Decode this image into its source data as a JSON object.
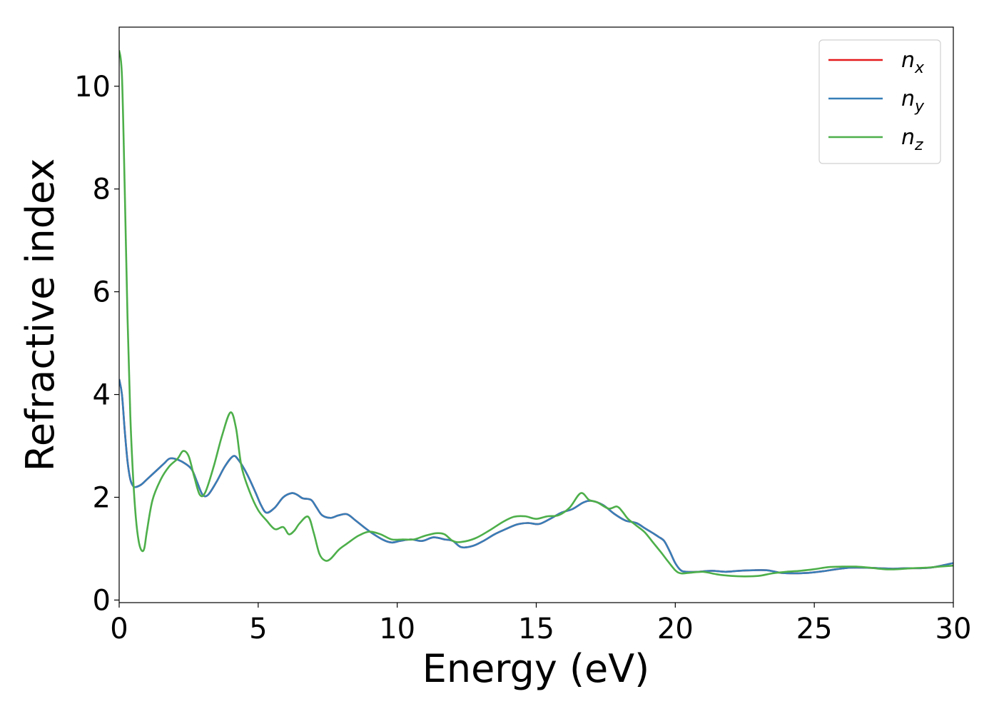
{
  "chart_data": {
    "type": "line",
    "xlabel": "Energy (eV)",
    "ylabel": "Refractive index",
    "xlim": [
      0,
      30
    ],
    "ylim": [
      -0.05,
      11.15
    ],
    "xticks": [
      0,
      5,
      10,
      15,
      20,
      25,
      30
    ],
    "yticks": [
      0,
      2,
      4,
      6,
      8,
      10
    ],
    "grid": false,
    "legend_position": "top-right",
    "series": [
      {
        "name": "n",
        "sub": "x",
        "color": "#e41a1c",
        "x": [
          0,
          0.1,
          0.2,
          0.3,
          0.4,
          0.5,
          0.6,
          0.8,
          1.0,
          1.3,
          1.6,
          1.8,
          2.0,
          2.3,
          2.6,
          2.8,
          3.0,
          3.2,
          3.5,
          3.8,
          4.1,
          4.3,
          4.6,
          4.9,
          5.1,
          5.3,
          5.6,
          5.9,
          6.2,
          6.4,
          6.6,
          6.9,
          7.1,
          7.3,
          7.6,
          7.9,
          8.2,
          8.5,
          8.8,
          9.1,
          9.5,
          9.8,
          10.1,
          10.5,
          10.9,
          11.3,
          11.7,
          12.0,
          12.3,
          12.7,
          13.1,
          13.5,
          13.9,
          14.3,
          14.7,
          15.1,
          15.5,
          15.9,
          16.3,
          16.7,
          17.0,
          17.4,
          17.8,
          18.2,
          18.6,
          18.9,
          19.2,
          19.4,
          19.6,
          19.8,
          20.0,
          20.2,
          20.4,
          20.8,
          21.3,
          21.8,
          22.3,
          22.8,
          23.3,
          23.8,
          24.3,
          24.8,
          25.3,
          25.8,
          26.3,
          26.8,
          27.3,
          27.8,
          28.3,
          28.8,
          29.3,
          30.0
        ],
        "y": [
          4.3,
          4.0,
          3.3,
          2.7,
          2.35,
          2.22,
          2.2,
          2.25,
          2.35,
          2.5,
          2.65,
          2.75,
          2.75,
          2.68,
          2.55,
          2.3,
          2.05,
          2.05,
          2.3,
          2.6,
          2.8,
          2.72,
          2.45,
          2.1,
          1.85,
          1.7,
          1.8,
          2.0,
          2.08,
          2.05,
          1.98,
          1.95,
          1.8,
          1.65,
          1.6,
          1.65,
          1.67,
          1.55,
          1.42,
          1.3,
          1.17,
          1.12,
          1.15,
          1.18,
          1.15,
          1.22,
          1.18,
          1.15,
          1.03,
          1.05,
          1.15,
          1.28,
          1.38,
          1.47,
          1.5,
          1.48,
          1.58,
          1.7,
          1.77,
          1.9,
          1.93,
          1.85,
          1.68,
          1.55,
          1.5,
          1.4,
          1.3,
          1.23,
          1.15,
          0.95,
          0.72,
          0.58,
          0.55,
          0.55,
          0.57,
          0.55,
          0.57,
          0.58,
          0.58,
          0.53,
          0.52,
          0.53,
          0.56,
          0.6,
          0.63,
          0.63,
          0.62,
          0.61,
          0.62,
          0.62,
          0.64,
          0.72
        ]
      },
      {
        "name": "n",
        "sub": "y",
        "color": "#377eb8",
        "x": [
          0,
          0.1,
          0.2,
          0.3,
          0.4,
          0.5,
          0.6,
          0.8,
          1.0,
          1.3,
          1.6,
          1.8,
          2.0,
          2.3,
          2.6,
          2.8,
          3.0,
          3.2,
          3.5,
          3.8,
          4.1,
          4.3,
          4.6,
          4.9,
          5.1,
          5.3,
          5.6,
          5.9,
          6.2,
          6.4,
          6.6,
          6.9,
          7.1,
          7.3,
          7.6,
          7.9,
          8.2,
          8.5,
          8.8,
          9.1,
          9.5,
          9.8,
          10.1,
          10.5,
          10.9,
          11.3,
          11.7,
          12.0,
          12.3,
          12.7,
          13.1,
          13.5,
          13.9,
          14.3,
          14.7,
          15.1,
          15.5,
          15.9,
          16.3,
          16.7,
          17.0,
          17.4,
          17.8,
          18.2,
          18.6,
          18.9,
          19.2,
          19.4,
          19.6,
          19.8,
          20.0,
          20.2,
          20.4,
          20.8,
          21.3,
          21.8,
          22.3,
          22.8,
          23.3,
          23.8,
          24.3,
          24.8,
          25.3,
          25.8,
          26.3,
          26.8,
          27.3,
          27.8,
          28.3,
          28.8,
          29.3,
          30.0
        ],
        "y": [
          4.3,
          4.0,
          3.3,
          2.7,
          2.35,
          2.22,
          2.2,
          2.25,
          2.35,
          2.5,
          2.65,
          2.75,
          2.75,
          2.68,
          2.55,
          2.3,
          2.05,
          2.05,
          2.3,
          2.6,
          2.8,
          2.72,
          2.45,
          2.1,
          1.85,
          1.7,
          1.8,
          2.0,
          2.08,
          2.05,
          1.98,
          1.95,
          1.8,
          1.65,
          1.6,
          1.65,
          1.67,
          1.55,
          1.42,
          1.3,
          1.17,
          1.12,
          1.15,
          1.18,
          1.15,
          1.22,
          1.18,
          1.15,
          1.03,
          1.05,
          1.15,
          1.28,
          1.38,
          1.47,
          1.5,
          1.48,
          1.58,
          1.7,
          1.77,
          1.9,
          1.93,
          1.85,
          1.68,
          1.55,
          1.5,
          1.4,
          1.3,
          1.23,
          1.15,
          0.95,
          0.72,
          0.58,
          0.55,
          0.55,
          0.57,
          0.55,
          0.57,
          0.58,
          0.58,
          0.53,
          0.52,
          0.53,
          0.56,
          0.6,
          0.63,
          0.63,
          0.62,
          0.61,
          0.62,
          0.62,
          0.64,
          0.72
        ]
      },
      {
        "name": "n",
        "sub": "z",
        "color": "#4daf4a",
        "x": [
          0,
          0.1,
          0.2,
          0.3,
          0.4,
          0.5,
          0.6,
          0.7,
          0.8,
          0.9,
          1.0,
          1.2,
          1.5,
          1.8,
          2.1,
          2.3,
          2.5,
          2.7,
          2.9,
          3.1,
          3.4,
          3.7,
          4.0,
          4.2,
          4.4,
          4.7,
          5.0,
          5.3,
          5.6,
          5.9,
          6.1,
          6.3,
          6.5,
          6.8,
          7.0,
          7.2,
          7.4,
          7.6,
          7.9,
          8.2,
          8.6,
          9.0,
          9.4,
          9.8,
          10.2,
          10.6,
          11.0,
          11.4,
          11.7,
          12.0,
          12.3,
          12.8,
          13.3,
          13.8,
          14.2,
          14.6,
          15.0,
          15.4,
          15.8,
          16.2,
          16.6,
          16.9,
          17.2,
          17.6,
          17.9,
          18.1,
          18.3,
          18.6,
          18.9,
          19.2,
          19.5,
          19.7,
          20.0,
          20.2,
          20.5,
          21.0,
          21.5,
          22.0,
          22.5,
          23.0,
          23.5,
          24.0,
          24.5,
          25.0,
          25.5,
          26.0,
          26.5,
          27.0,
          27.5,
          28.0,
          28.5,
          29.0,
          29.5,
          30.0
        ],
        "y": [
          10.7,
          10.2,
          8.0,
          5.5,
          3.6,
          2.4,
          1.6,
          1.15,
          0.97,
          1.0,
          1.35,
          1.95,
          2.35,
          2.6,
          2.75,
          2.9,
          2.8,
          2.4,
          2.05,
          2.1,
          2.6,
          3.2,
          3.65,
          3.35,
          2.6,
          2.1,
          1.75,
          1.55,
          1.38,
          1.42,
          1.28,
          1.35,
          1.5,
          1.62,
          1.3,
          0.9,
          0.77,
          0.8,
          0.98,
          1.1,
          1.25,
          1.33,
          1.28,
          1.18,
          1.18,
          1.18,
          1.25,
          1.3,
          1.28,
          1.15,
          1.13,
          1.2,
          1.35,
          1.52,
          1.62,
          1.63,
          1.58,
          1.63,
          1.65,
          1.8,
          2.08,
          1.95,
          1.9,
          1.78,
          1.82,
          1.72,
          1.58,
          1.45,
          1.32,
          1.12,
          0.92,
          0.78,
          0.58,
          0.52,
          0.53,
          0.55,
          0.5,
          0.47,
          0.46,
          0.47,
          0.52,
          0.55,
          0.57,
          0.6,
          0.64,
          0.65,
          0.65,
          0.63,
          0.6,
          0.6,
          0.62,
          0.63,
          0.65,
          0.67
        ]
      }
    ]
  }
}
